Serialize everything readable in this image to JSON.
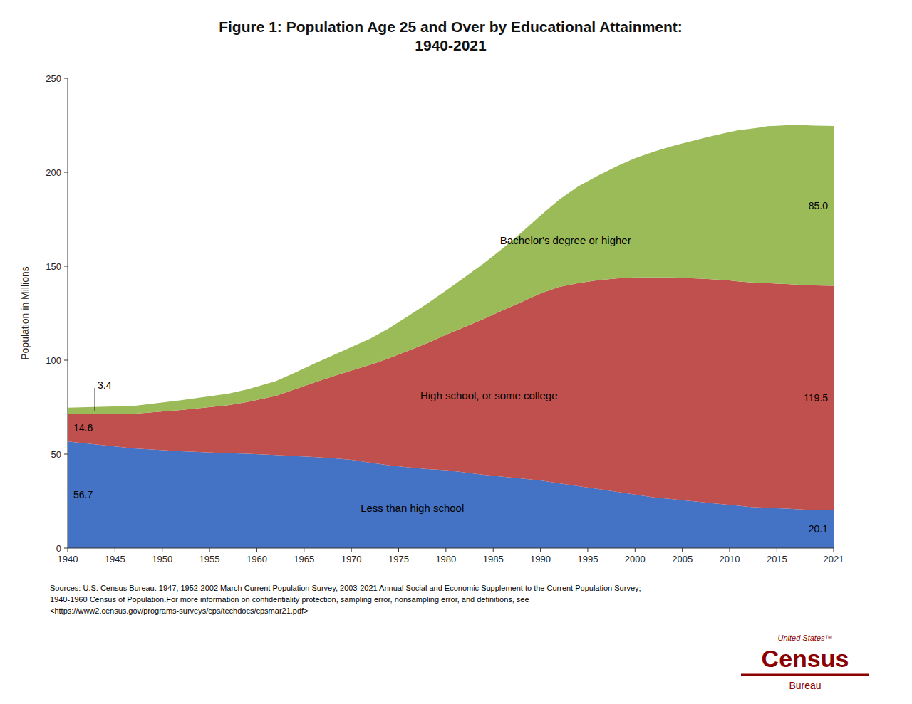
{
  "chart_data": {
    "type": "area",
    "stacked": true,
    "title": "Figure 1: Population Age 25 and Over by Educational Attainment:\n1940-2021",
    "y_label": "Population in Millions",
    "x": [
      1940,
      1947,
      1952,
      1957,
      1959,
      1962,
      1964,
      1966,
      1968,
      1970,
      1972,
      1974,
      1976,
      1978,
      1980,
      1982,
      1984,
      1986,
      1988,
      1990,
      1992,
      1994,
      1996,
      1998,
      2000,
      2002,
      2003,
      2004,
      2005,
      2006,
      2007,
      2008,
      2009,
      2010,
      2011,
      2012,
      2013,
      2014,
      2015,
      2016,
      2017,
      2018,
      2019,
      2020,
      2021
    ],
    "series": [
      {
        "name": "Less than high school",
        "color": "#4472C4",
        "values": [
          56.7,
          53.0,
          51.5,
          50.5,
          50.2,
          49.5,
          49.0,
          48.5,
          47.8,
          47.0,
          45.5,
          44.0,
          43.0,
          42.0,
          41.5,
          40.2,
          39.0,
          38.0,
          37.0,
          36.0,
          34.5,
          33.0,
          31.5,
          30.0,
          28.5,
          27.0,
          26.5,
          26.0,
          25.5,
          25.0,
          24.5,
          24.0,
          23.5,
          23.0,
          22.5,
          22.0,
          21.7,
          21.5,
          21.2,
          21.0,
          20.7,
          20.5,
          20.3,
          20.2,
          20.1
        ],
        "value_labels": [
          "56.7",
          null,
          null,
          null,
          null,
          null,
          null,
          null,
          null,
          null,
          null,
          null,
          null,
          null,
          null,
          null,
          null,
          null,
          null,
          null,
          null,
          null,
          null,
          null,
          null,
          null,
          null,
          null,
          null,
          null,
          null,
          null,
          null,
          null,
          null,
          null,
          null,
          null,
          null,
          null,
          null,
          null,
          null,
          null,
          "20.1"
        ]
      },
      {
        "name": "High school, or some college",
        "color": "#C0504D",
        "values": [
          14.6,
          18.5,
          22.0,
          25.5,
          27.5,
          31.5,
          35.5,
          39.5,
          43.5,
          47.5,
          52.0,
          57.0,
          62.0,
          67.0,
          72.0,
          77.5,
          83.0,
          88.5,
          94.0,
          99.5,
          104.5,
          108.0,
          111.0,
          113.5,
          115.5,
          117.0,
          117.5,
          118.0,
          118.3,
          118.6,
          118.9,
          119.1,
          119.3,
          119.4,
          119.4,
          119.5,
          119.5,
          119.5,
          119.5,
          119.5,
          119.5,
          119.5,
          119.5,
          119.5,
          119.5
        ],
        "value_labels": [
          "14.6",
          null,
          null,
          null,
          null,
          null,
          null,
          null,
          null,
          null,
          null,
          null,
          null,
          null,
          null,
          null,
          null,
          null,
          null,
          null,
          null,
          null,
          null,
          null,
          null,
          null,
          null,
          null,
          null,
          null,
          null,
          null,
          null,
          null,
          null,
          null,
          null,
          null,
          null,
          null,
          null,
          null,
          null,
          null,
          "119.5"
        ]
      },
      {
        "name": "Bachelor's degree or higher",
        "color": "#9BBB59",
        "values": [
          3.4,
          4.2,
          5.2,
          6.2,
          6.8,
          7.8,
          8.8,
          10.0,
          11.2,
          12.5,
          14.0,
          16.0,
          18.5,
          21.0,
          23.5,
          26.5,
          29.5,
          33.0,
          37.0,
          41.5,
          46.5,
          51.5,
          55.5,
          59.5,
          63.5,
          67.0,
          68.5,
          70.0,
          71.5,
          73.0,
          74.5,
          76.0,
          77.5,
          79.0,
          80.5,
          81.5,
          82.5,
          83.5,
          84.0,
          84.5,
          85.0,
          85.0,
          85.0,
          85.0,
          85.0
        ],
        "value_labels": [
          "3.4",
          null,
          null,
          null,
          null,
          null,
          null,
          null,
          null,
          null,
          null,
          null,
          null,
          null,
          null,
          null,
          null,
          null,
          null,
          null,
          null,
          null,
          null,
          null,
          null,
          null,
          null,
          null,
          null,
          null,
          null,
          null,
          null,
          null,
          null,
          null,
          null,
          null,
          null,
          null,
          null,
          null,
          null,
          null,
          "85.0"
        ]
      }
    ],
    "xlim": [
      1940,
      2021
    ],
    "ylim": [
      0,
      250
    ],
    "xticks": [
      1940,
      1945,
      1950,
      1955,
      1960,
      1965,
      1970,
      1975,
      1980,
      1985,
      1990,
      1995,
      2000,
      2005,
      2010,
      2015,
      2021
    ],
    "yticks": [
      0,
      50,
      100,
      150,
      200,
      250
    ],
    "grid": false,
    "source": "Sources:  U.S. Census Bureau. 1947, 1952-2002 March Current Population Survey, 2003-2021 Annual Social and Economic Supplement to the Current Population Survey;\n1940-1960 Census of Population.For more information on confidentiality protection, sampling error, nonsampling error, and definitions, see\n<https://www2.census.gov/programs-surveys/cps/techdocs/cpsmar21.pdf>",
    "logo_text": [
      "United States™",
      "Census",
      "Bureau"
    ]
  }
}
